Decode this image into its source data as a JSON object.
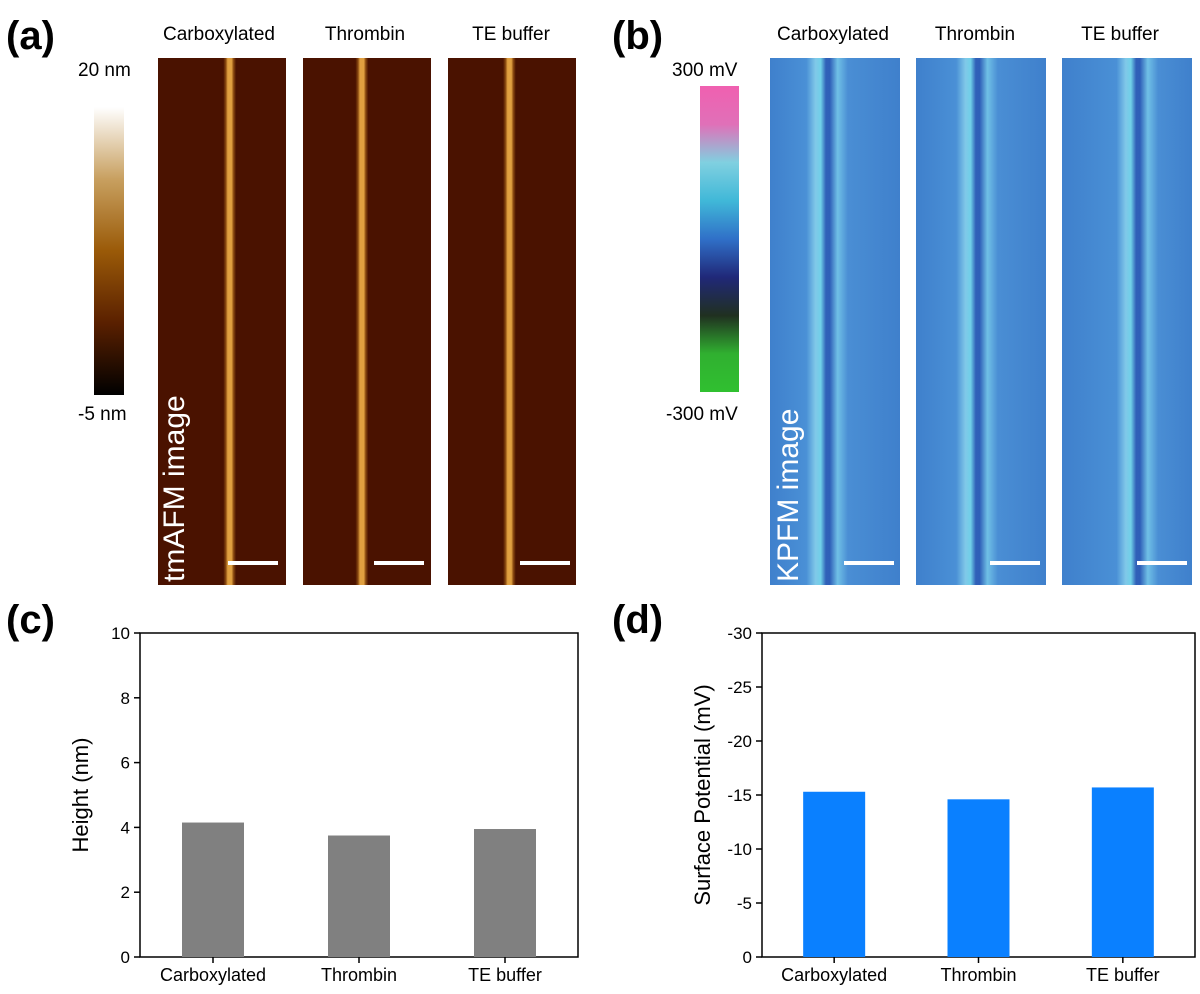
{
  "panels": {
    "a": {
      "label": "(a)",
      "columns": [
        "Carboxylated",
        "Thrombin",
        "TE buffer"
      ],
      "colorbar": {
        "max_label": "20 nm",
        "min_label": "-5 nm",
        "stops": [
          "#ffffff",
          "#c8a060",
          "#9a5a08",
          "#5a2000",
          "#000000"
        ]
      },
      "image_label": "tmAFM image",
      "background_color": "#4a1200",
      "fiber_color": "#e0a040"
    },
    "b": {
      "label": "(b)",
      "columns": [
        "Carboxylated",
        "Thrombin",
        "TE buffer"
      ],
      "colorbar": {
        "max_label": "300 mV",
        "min_label": "-300 mV",
        "stops": [
          "#f060b0",
          "#e070b8",
          "#80d0e0",
          "#40b8d8",
          "#3070c8",
          "#202878",
          "#203020",
          "#30b030",
          "#30c030"
        ]
      },
      "image_label": "KPFM image",
      "background_color": "#3f80cc",
      "fiber_color": "#70d0e8"
    },
    "c": {
      "label": "(c)",
      "chart_data": {
        "type": "bar",
        "categories": [
          "Carboxylated",
          "Thrombin",
          "TE buffer"
        ],
        "values": [
          4.15,
          3.75,
          3.95
        ],
        "ylabel": "Height (nm)",
        "ylim": [
          0,
          10
        ],
        "yticks": [
          0,
          2,
          4,
          6,
          8,
          10
        ],
        "bar_color": "#808080"
      }
    },
    "d": {
      "label": "(d)",
      "chart_data": {
        "type": "bar",
        "categories": [
          "Carboxylated",
          "Thrombin",
          "TE buffer"
        ],
        "values": [
          -15.3,
          -14.6,
          -15.7
        ],
        "ylabel": "Surface Potential (mV)",
        "ylim": [
          0,
          -30
        ],
        "yticks": [
          0,
          -5,
          -10,
          -15,
          -20,
          -25,
          -30
        ],
        "bar_color": "#0a80ff"
      }
    }
  }
}
